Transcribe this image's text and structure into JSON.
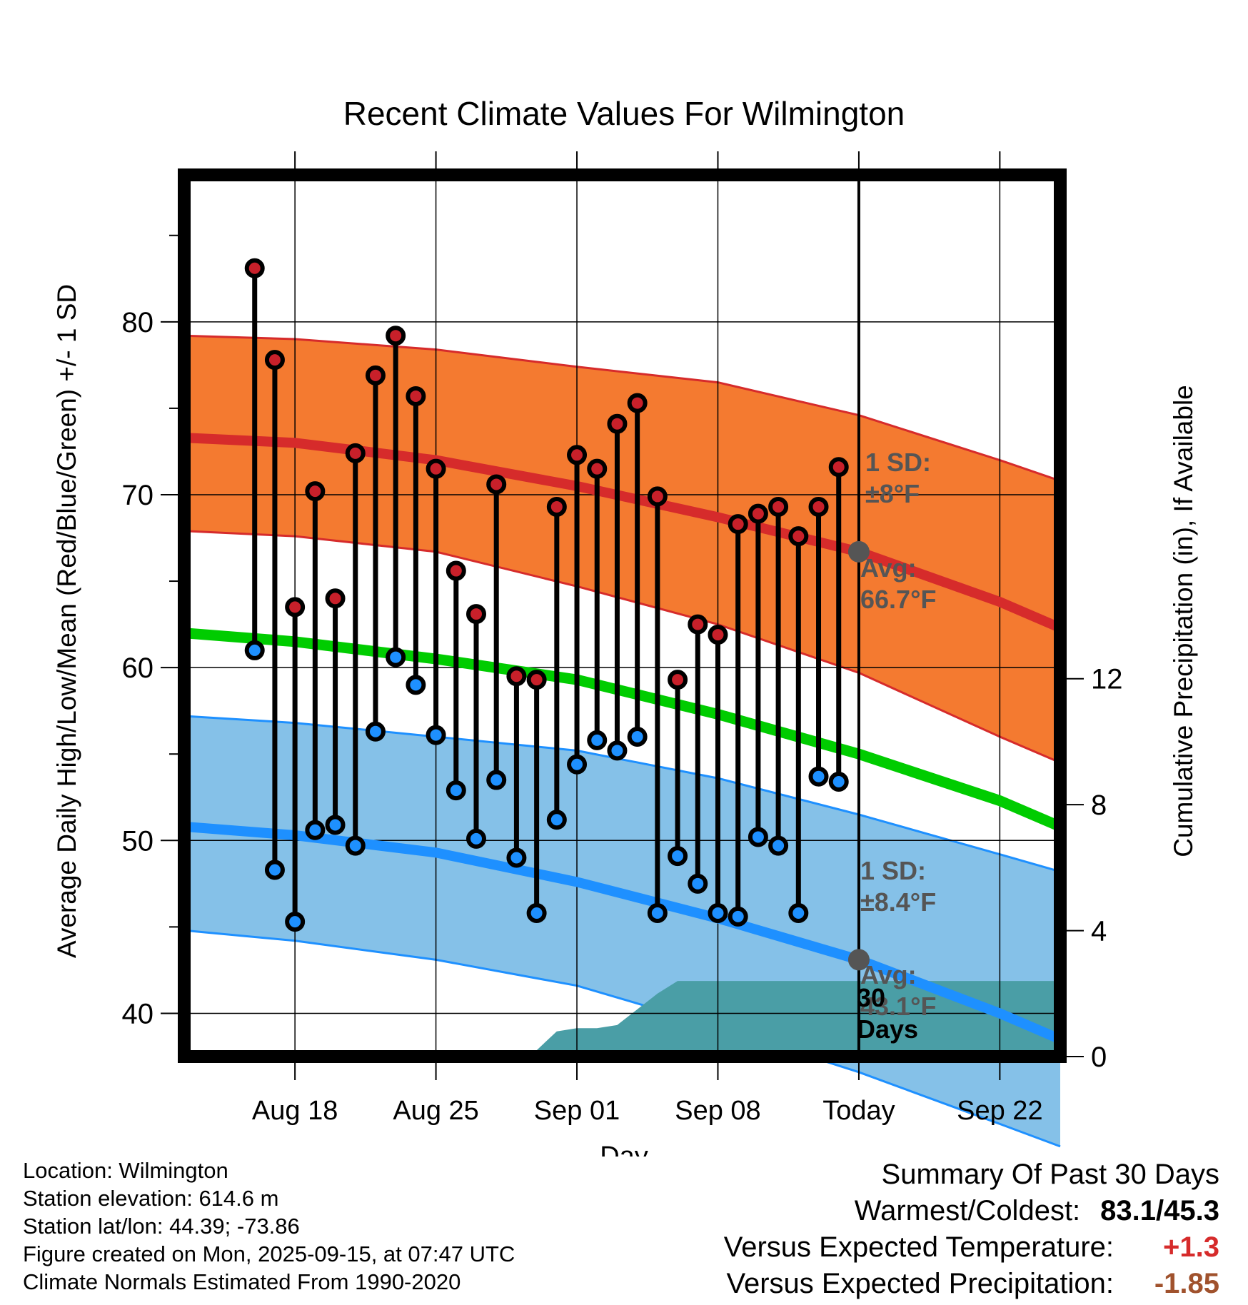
{
  "chart_data": {
    "type": "line",
    "title": "Recent Climate Values For Wilmington",
    "xlabel": "Day",
    "ylabel_left": "Average Daily High/Low/Mean (Red/Blue/Green) +/- 1 SD",
    "ylabel_right": "Cumulative Precipitation (in), If Available",
    "x_day_range": [
      -33.5,
      10
    ],
    "ylim": [
      37.5,
      88.5
    ],
    "y_ticks": [
      40,
      50,
      60,
      70,
      80
    ],
    "y_tick_labels": [
      "40",
      "50",
      "60",
      "70",
      "80"
    ],
    "precip_ylim": [
      0,
      28
    ],
    "precip_ticks": [
      0,
      4,
      8,
      12
    ],
    "precip_tick_labels": [
      "0",
      "4",
      "8",
      "12"
    ],
    "x_ticks": [
      -28,
      -21,
      -14,
      -7,
      0,
      7
    ],
    "x_tick_labels": [
      "Aug 18",
      "Aug 25",
      "Sep 01",
      "Sep 08",
      "Today",
      "Sep 22"
    ],
    "days": [
      -30,
      -29,
      -28,
      -27,
      -26,
      -25,
      -24,
      -23,
      -22,
      -21,
      -20,
      -19,
      -18,
      -17,
      -16,
      -15,
      -14,
      -13,
      -12,
      -11,
      -10,
      -9,
      -8,
      -7,
      -6,
      -5,
      -4,
      -3,
      -2,
      -1
    ],
    "series": [
      {
        "name": "Daily High",
        "color": "#c8202a",
        "values": [
          83.1,
          77.8,
          63.5,
          70.2,
          64.0,
          72.4,
          76.9,
          79.2,
          75.7,
          71.5,
          65.6,
          63.1,
          70.6,
          59.5,
          59.3,
          69.3,
          72.3,
          71.5,
          74.1,
          75.3,
          69.9,
          59.3,
          62.5,
          61.9,
          68.3,
          68.9,
          69.3,
          67.6,
          69.3,
          71.6
        ]
      },
      {
        "name": "Daily Low",
        "color": "#1e90ff",
        "values": [
          61.0,
          48.3,
          45.3,
          50.6,
          50.9,
          49.7,
          56.3,
          60.6,
          59.0,
          56.1,
          52.9,
          50.1,
          53.5,
          49.0,
          45.8,
          51.2,
          54.4,
          55.8,
          55.2,
          56.0,
          45.8,
          49.1,
          47.5,
          45.8,
          45.6,
          50.2,
          49.7,
          45.8,
          53.7,
          53.4
        ]
      }
    ],
    "normals": {
      "days": [
        -33.5,
        -28,
        -21,
        -14,
        -7,
        0,
        7,
        10
      ],
      "high_avg": [
        73.3,
        73.0,
        72.0,
        70.5,
        68.7,
        66.7,
        63.8,
        62.3
      ],
      "high_sd_upper": [
        79.2,
        79.0,
        78.4,
        77.4,
        76.5,
        74.6,
        72.0,
        70.8
      ],
      "high_sd_lower": [
        67.9,
        67.6,
        66.7,
        64.7,
        62.5,
        59.7,
        56.0,
        54.5
      ],
      "mean_avg": [
        62.0,
        61.5,
        60.5,
        59.3,
        57.3,
        55.0,
        52.3,
        50.8
      ],
      "low_avg": [
        50.8,
        50.3,
        49.3,
        47.6,
        45.5,
        43.1,
        40.0,
        38.5
      ],
      "low_sd_upper": [
        57.2,
        56.8,
        56.0,
        55.2,
        53.6,
        51.5,
        49.2,
        48.2
      ],
      "low_sd_lower": [
        44.8,
        44.2,
        43.1,
        41.6,
        39.2,
        36.6,
        33.6,
        32.3
      ]
    },
    "precipitation": {
      "days": [
        -33.5,
        -20,
        -19,
        -16,
        -15,
        -14,
        -13,
        -12,
        -11,
        -10,
        -9,
        -8,
        -7,
        -1,
        0,
        10
      ],
      "values": [
        0,
        0,
        0.2,
        0.2,
        0.8,
        0.9,
        0.9,
        1.0,
        1.5,
        2.0,
        2.4,
        2.4,
        2.4,
        2.4,
        2.4,
        2.4
      ]
    },
    "annotations": {
      "high_sd_text": [
        "1 SD:",
        "±8°F"
      ],
      "high_avg_text": [
        "Avg:",
        "66.7°F"
      ],
      "low_sd_text": [
        "1 SD:",
        "±8.4°F"
      ],
      "low_avg_text": [
        "Avg:",
        "43.1°F"
      ],
      "precip_days_text": [
        "30",
        "Days"
      ],
      "today_high_avg": 66.7,
      "today_low_avg": 43.1
    },
    "colors": {
      "high_band": "#f47a30",
      "high_line": "#d62b2b",
      "low_band": "#85c1e8",
      "low_line": "#1e90ff",
      "mean_line": "#00cc00",
      "precip": "#4a9ea6",
      "annotation": "#555555"
    }
  },
  "footer": {
    "location": "Location: Wilmington",
    "elevation": "Station elevation: 614.6 m",
    "latlon": "Station lat/lon: 44.39; -73.86",
    "created": "Figure created on Mon, 2025-09-15, at 07:47 UTC",
    "normals": "Climate Normals Estimated From 1990-2020"
  },
  "summary": {
    "title": "Summary Of Past 30 Days",
    "warm_cold_label": "Warmest/Coldest:",
    "warm_cold_value": "83.1/45.3",
    "temp_label": "Versus Expected Temperature:",
    "temp_value": "+1.3",
    "temp_color": "#d62b2b",
    "precip_label": "Versus Expected Precipitation:",
    "precip_value": "-1.85",
    "precip_color": "#a0522d"
  }
}
